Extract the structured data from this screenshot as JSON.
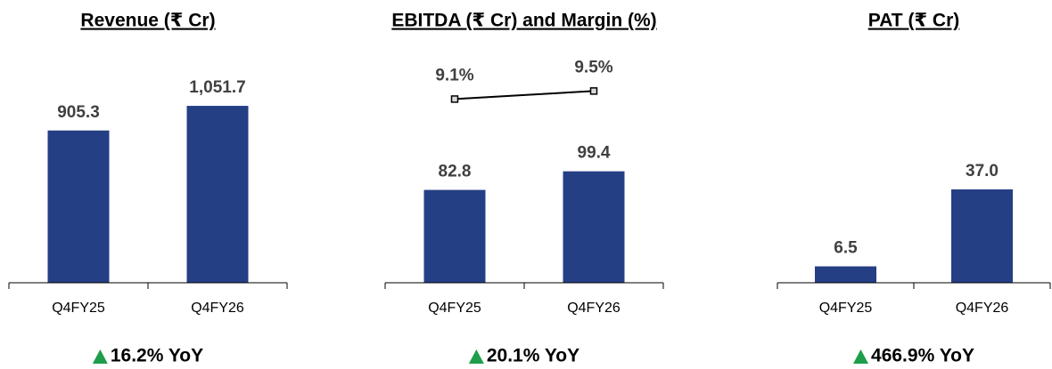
{
  "chart_data": [
    {
      "type": "bar",
      "title": "Revenue (₹ Cr)",
      "categories": [
        "Q4FY25",
        "Q4FY26"
      ],
      "values": [
        905.3,
        1051.7
      ],
      "value_labels": [
        "905.3",
        "1,051.7"
      ],
      "color": "#253f85",
      "ylim": [
        0,
        1200
      ],
      "annotation": "16.2% YoY"
    },
    {
      "type": "bar",
      "title": "EBITDA (₹ Cr) and Margin (%)",
      "categories": [
        "Q4FY25",
        "Q4FY26"
      ],
      "values": [
        82.8,
        99.4
      ],
      "color": "#253f85",
      "ylim": [
        0,
        180
      ],
      "y2_values": [
        9.1,
        9.5
      ],
      "y2_value_labels": [
        "9.1%",
        "9.5%"
      ],
      "y2lim": [
        0,
        10
      ],
      "line_color": "#000000",
      "annotation": "20.1% YoY"
    },
    {
      "type": "bar",
      "title": "PAT (₹ Cr)",
      "categories": [
        "Q4FY25",
        "Q4FY26"
      ],
      "values": [
        6.5,
        37.0
      ],
      "value_labels": [
        "6.5",
        "37.0"
      ],
      "color": "#253f85",
      "ylim": [
        0,
        80
      ],
      "annotation": "466.9% YoY"
    }
  ]
}
